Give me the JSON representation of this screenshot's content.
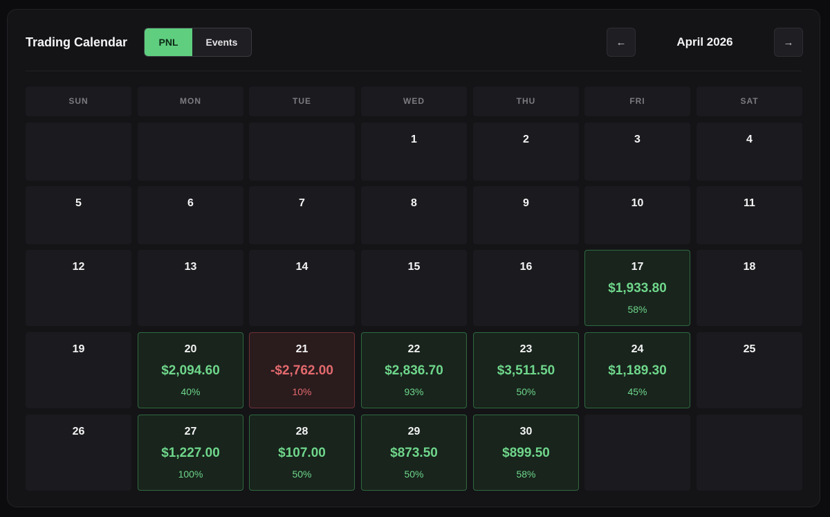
{
  "header": {
    "title": "Trading Calendar",
    "tabs": {
      "pnl": "PNL",
      "events": "Events",
      "active": "PNL"
    },
    "month": "April 2026",
    "prev_icon": "←",
    "next_icon": "→"
  },
  "colors": {
    "accent": "#5fcf7f",
    "gain": "#6fd68b",
    "loss": "#e36a6d",
    "background": "#0c0c0e"
  },
  "weekdays": [
    "SUN",
    "MON",
    "TUE",
    "WED",
    "THU",
    "FRI",
    "SAT"
  ],
  "weeks": [
    [
      null,
      null,
      null,
      {
        "day": "1"
      },
      {
        "day": "2"
      },
      {
        "day": "3"
      },
      {
        "day": "4"
      }
    ],
    [
      {
        "day": "5"
      },
      {
        "day": "6"
      },
      {
        "day": "7"
      },
      {
        "day": "8"
      },
      {
        "day": "9"
      },
      {
        "day": "10"
      },
      {
        "day": "11"
      }
    ],
    [
      {
        "day": "12"
      },
      {
        "day": "13"
      },
      {
        "day": "14"
      },
      {
        "day": "15"
      },
      {
        "day": "16"
      },
      {
        "day": "17",
        "pnl": "$1,933.80",
        "pct": "58%",
        "status": "gain"
      },
      {
        "day": "18"
      }
    ],
    [
      {
        "day": "19"
      },
      {
        "day": "20",
        "pnl": "$2,094.60",
        "pct": "40%",
        "status": "gain"
      },
      {
        "day": "21",
        "pnl": "-$2,762.00",
        "pct": "10%",
        "status": "loss"
      },
      {
        "day": "22",
        "pnl": "$2,836.70",
        "pct": "93%",
        "status": "gain"
      },
      {
        "day": "23",
        "pnl": "$3,511.50",
        "pct": "50%",
        "status": "gain"
      },
      {
        "day": "24",
        "pnl": "$1,189.30",
        "pct": "45%",
        "status": "gain"
      },
      {
        "day": "25"
      }
    ],
    [
      {
        "day": "26"
      },
      {
        "day": "27",
        "pnl": "$1,227.00",
        "pct": "100%",
        "status": "gain"
      },
      {
        "day": "28",
        "pnl": "$107.00",
        "pct": "50%",
        "status": "gain"
      },
      {
        "day": "29",
        "pnl": "$873.50",
        "pct": "50%",
        "status": "gain"
      },
      {
        "day": "30",
        "pnl": "$899.50",
        "pct": "58%",
        "status": "gain"
      },
      null,
      null
    ]
  ]
}
